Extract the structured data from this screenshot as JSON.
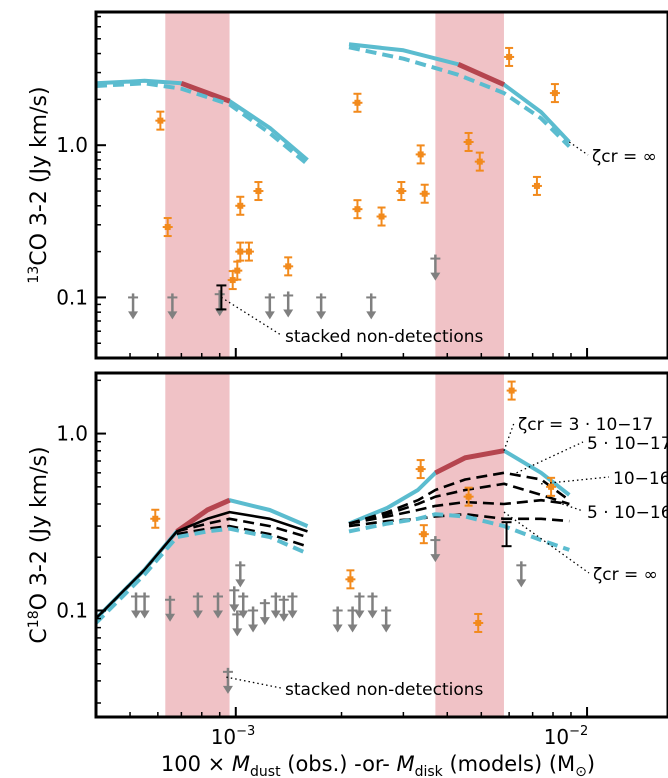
{
  "figure": {
    "xlabel_prefix": "100 × ",
    "xlabel_m1": "M",
    "xlabel_sub1": "dust",
    "xlabel_mid": " (obs.) -or- ",
    "xlabel_m2": "M",
    "xlabel_sub2": "disk",
    "xlabel_suffix": " (models) (M",
    "xlabel_sun": "⊙",
    "xlabel_close": ")",
    "xtick_base": "10",
    "xtick_exp_1": "−3",
    "xtick_exp_2": "−2"
  },
  "colors": {
    "observed": "#f28a1c",
    "upper_limit": "#808080",
    "model_light": "#5bbccf",
    "model_highlight": "#b5454f",
    "shade": "#f0c2c6",
    "model_black": "#000000"
  },
  "chart_data": [
    {
      "type": "scatter",
      "panel": "top",
      "ylabel_iso": "13",
      "ylabel_main": "CO 3-2 (Jy km/s)",
      "yscale": "log",
      "ylim": [
        0.04,
        7.5
      ],
      "xscale": "log",
      "xlim": [
        0.0004,
        0.017
      ],
      "ytick_labels": [
        "1.0",
        "0.1"
      ],
      "yticks": [
        1.0,
        0.1
      ],
      "shaded_ranges": [
        [
          0.00063,
          0.00096
        ],
        [
          0.0037,
          0.0058
        ]
      ],
      "annotations": [
        {
          "text": "stacked non-detections",
          "target": [
            0.00091,
            0.1
          ]
        },
        {
          "text": "ζcr = ∞",
          "target": [
            0.0089,
            1.05
          ]
        }
      ],
      "detections": [
        {
          "x": 0.00061,
          "y": 1.45
        },
        {
          "x": 0.00064,
          "y": 0.29
        },
        {
          "x": 0.00098,
          "y": 0.13
        },
        {
          "x": 0.00101,
          "y": 0.15
        },
        {
          "x": 0.00103,
          "y": 0.2
        },
        {
          "x": 0.00103,
          "y": 0.4
        },
        {
          "x": 0.00109,
          "y": 0.2
        },
        {
          "x": 0.00116,
          "y": 0.5
        },
        {
          "x": 0.00141,
          "y": 0.16
        },
        {
          "x": 0.00222,
          "y": 1.9
        },
        {
          "x": 0.00222,
          "y": 0.38
        },
        {
          "x": 0.0026,
          "y": 0.34
        },
        {
          "x": 0.00296,
          "y": 0.5
        },
        {
          "x": 0.00336,
          "y": 0.87
        },
        {
          "x": 0.00345,
          "y": 0.48
        },
        {
          "x": 0.0046,
          "y": 1.05
        },
        {
          "x": 0.00495,
          "y": 0.78
        },
        {
          "x": 0.006,
          "y": 3.8
        },
        {
          "x": 0.0072,
          "y": 0.54
        },
        {
          "x": 0.0081,
          "y": 2.2
        }
      ],
      "upper_limits": [
        {
          "x": 0.00051,
          "y": 0.1
        },
        {
          "x": 0.00066,
          "y": 0.1
        },
        {
          "x": 0.0009,
          "y": 0.105
        },
        {
          "x": 0.00125,
          "y": 0.1
        },
        {
          "x": 0.00141,
          "y": 0.103
        },
        {
          "x": 0.00175,
          "y": 0.1
        },
        {
          "x": 0.00243,
          "y": 0.1
        },
        {
          "x": 0.0037,
          "y": 0.18
        }
      ],
      "stacked": {
        "x": 0.00091,
        "y": 0.1
      },
      "models": [
        {
          "style": "solid",
          "x": [
            0.0004,
            0.00055,
            0.0007,
            0.00096,
            0.00125,
            0.0016
          ],
          "y": [
            2.55,
            2.65,
            2.55,
            1.95,
            1.3,
            0.8
          ]
        },
        {
          "style": "dashed",
          "x": [
            0.0004,
            0.00055,
            0.0007,
            0.00096,
            0.00125,
            0.0016
          ],
          "y": [
            2.45,
            2.55,
            2.35,
            1.85,
            1.2,
            0.75
          ]
        },
        {
          "style": "solid",
          "x": [
            0.0021,
            0.003,
            0.0043,
            0.0058,
            0.0074,
            0.0089
          ],
          "y": [
            4.6,
            4.2,
            3.4,
            2.5,
            1.65,
            1.05
          ]
        },
        {
          "style": "dashed",
          "x": [
            0.0021,
            0.003,
            0.0043,
            0.0058,
            0.0074,
            0.0089
          ],
          "y": [
            4.4,
            3.7,
            2.9,
            2.2,
            1.5,
            0.98
          ]
        }
      ]
    },
    {
      "type": "scatter",
      "panel": "bottom",
      "ylabel_iso": "18",
      "ylabel_pre": "C",
      "ylabel_main": "O 3-2 (Jy km/s)",
      "yscale": "log",
      "ylim": [
        0.025,
        2.2
      ],
      "xscale": "log",
      "xlim": [
        0.0004,
        0.017
      ],
      "ytick_labels": [
        "1.0",
        "0.1"
      ],
      "yticks": [
        1.0,
        0.1
      ],
      "shaded_ranges": [
        [
          0.00063,
          0.00096
        ],
        [
          0.0037,
          0.0058
        ]
      ],
      "annotations": [
        {
          "text": "ζcr = 3 · 10−17",
          "target": [
            0.0058,
            0.8
          ]
        },
        {
          "text": "5 · 10−17",
          "target": [
            0.0063,
            0.6
          ]
        },
        {
          "text": "10−16",
          "target": [
            0.0074,
            0.52
          ]
        },
        {
          "text": "5 · 10−16",
          "target": [
            0.0085,
            0.4
          ]
        },
        {
          "text": "ζcr = ∞",
          "target": [
            0.0058,
            0.36
          ]
        },
        {
          "text": "stacked non-detections",
          "target": [
            0.00094,
            0.042
          ]
        }
      ],
      "detections": [
        {
          "x": 0.00059,
          "y": 0.33
        },
        {
          "x": 0.00212,
          "y": 0.15
        },
        {
          "x": 0.00336,
          "y": 0.63
        },
        {
          "x": 0.00343,
          "y": 0.27
        },
        {
          "x": 0.0046,
          "y": 0.44
        },
        {
          "x": 0.0049,
          "y": 0.085
        },
        {
          "x": 0.0061,
          "y": 1.75
        },
        {
          "x": 0.0079,
          "y": 0.5
        }
      ],
      "upper_limits": [
        {
          "x": 0.00052,
          "y": 0.12
        },
        {
          "x": 0.00055,
          "y": 0.12
        },
        {
          "x": 0.00065,
          "y": 0.115
        },
        {
          "x": 0.00078,
          "y": 0.12
        },
        {
          "x": 0.00089,
          "y": 0.12
        },
        {
          "x": 0.00095,
          "y": 0.045
        },
        {
          "x": 0.00099,
          "y": 0.13
        },
        {
          "x": 0.00101,
          "y": 0.095
        },
        {
          "x": 0.00103,
          "y": 0.18
        },
        {
          "x": 0.00105,
          "y": 0.12
        },
        {
          "x": 0.00112,
          "y": 0.1
        },
        {
          "x": 0.00121,
          "y": 0.11
        },
        {
          "x": 0.0013,
          "y": 0.12
        },
        {
          "x": 0.00137,
          "y": 0.115
        },
        {
          "x": 0.00145,
          "y": 0.12
        },
        {
          "x": 0.00195,
          "y": 0.1
        },
        {
          "x": 0.00215,
          "y": 0.1
        },
        {
          "x": 0.00225,
          "y": 0.12
        },
        {
          "x": 0.00245,
          "y": 0.12
        },
        {
          "x": 0.00268,
          "y": 0.1
        },
        {
          "x": 0.0037,
          "y": 0.25
        },
        {
          "x": 0.0065,
          "y": 0.18
        }
      ],
      "stacked": {
        "x": 0.0059,
        "y": 0.27
      },
      "models": [
        {
          "style": "solid",
          "color": "light",
          "x": [
            0.0004,
            0.00055,
            0.00068,
            0.00083,
            0.00096,
            0.00125,
            0.0016
          ],
          "y": [
            0.09,
            0.17,
            0.28,
            0.37,
            0.42,
            0.37,
            0.3
          ]
        },
        {
          "style": "solid",
          "color": "black",
          "x": [
            0.0004,
            0.00055,
            0.00068,
            0.00083,
            0.00096,
            0.00125,
            0.0016
          ],
          "y": [
            0.09,
            0.17,
            0.28,
            0.33,
            0.36,
            0.33,
            0.28
          ]
        },
        {
          "style": "dashed",
          "color": "black",
          "x": [
            0.00068,
            0.00083,
            0.00096,
            0.00125,
            0.0016
          ],
          "y": [
            0.28,
            0.31,
            0.33,
            0.3,
            0.26
          ]
        },
        {
          "style": "dashed",
          "color": "black",
          "x": [
            0.00068,
            0.00083,
            0.00096,
            0.00125,
            0.0016
          ],
          "y": [
            0.27,
            0.29,
            0.3,
            0.27,
            0.23
          ]
        },
        {
          "style": "dashed",
          "color": "light",
          "x": [
            0.0004,
            0.00055,
            0.00068,
            0.00083,
            0.00096,
            0.00125,
            0.0016
          ],
          "y": [
            0.085,
            0.16,
            0.26,
            0.28,
            0.29,
            0.26,
            0.21
          ]
        },
        {
          "style": "solid",
          "color": "light",
          "x": [
            0.0021,
            0.0027,
            0.0033,
            0.0037,
            0.0045,
            0.0058,
            0.0074,
            0.0089
          ],
          "y": [
            0.31,
            0.38,
            0.48,
            0.6,
            0.73,
            0.8,
            0.6,
            0.45
          ]
        },
        {
          "style": "dashed",
          "color": "black",
          "x": [
            0.0021,
            0.0027,
            0.0033,
            0.0037,
            0.0045,
            0.0058,
            0.0074,
            0.0089
          ],
          "y": [
            0.31,
            0.36,
            0.42,
            0.48,
            0.55,
            0.6,
            0.55,
            0.42
          ]
        },
        {
          "style": "dashed",
          "color": "black",
          "x": [
            0.0021,
            0.0027,
            0.0033,
            0.0037,
            0.0045,
            0.0058,
            0.0074,
            0.0089
          ],
          "y": [
            0.31,
            0.35,
            0.4,
            0.44,
            0.48,
            0.52,
            0.45,
            0.4
          ]
        },
        {
          "style": "dashed",
          "color": "black",
          "x": [
            0.0021,
            0.0027,
            0.0033,
            0.0037,
            0.0045,
            0.0058,
            0.0074,
            0.0089
          ],
          "y": [
            0.31,
            0.34,
            0.37,
            0.39,
            0.41,
            0.4,
            0.42,
            0.4
          ]
        },
        {
          "style": "dashed",
          "color": "black",
          "x": [
            0.0021,
            0.0027,
            0.0033,
            0.0037,
            0.0045,
            0.0058,
            0.0074,
            0.0089
          ],
          "y": [
            0.3,
            0.32,
            0.33,
            0.34,
            0.35,
            0.33,
            0.33,
            0.32
          ]
        },
        {
          "style": "dashed",
          "color": "light",
          "x": [
            0.0021,
            0.0027,
            0.0033,
            0.0037,
            0.0045,
            0.0058,
            0.0074,
            0.0089
          ],
          "y": [
            0.28,
            0.31,
            0.33,
            0.35,
            0.34,
            0.3,
            0.25,
            0.22
          ]
        }
      ]
    }
  ]
}
